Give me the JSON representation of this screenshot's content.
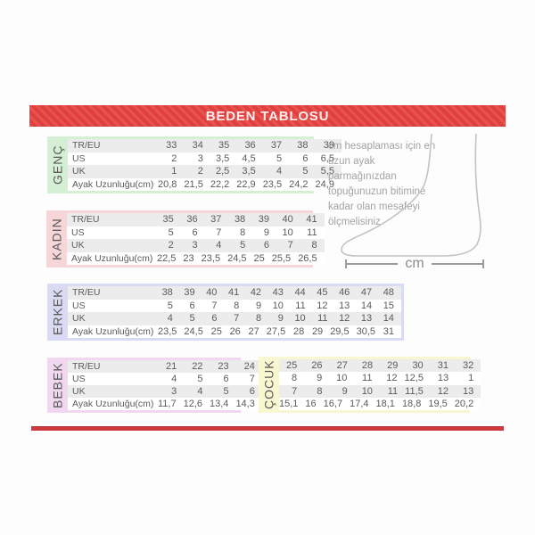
{
  "title": "BEDEN TABLOSU",
  "measure_label": "cm",
  "instructions": {
    "lines": [
      "cm hesaplaması için en",
      "uzun ayak parmağınızdan",
      "topuğunuzun bitimine",
      "kadar olan mesafeyi",
      "ölçmelisiniz."
    ]
  },
  "row_labels": [
    "TR/EU",
    "US",
    "UK",
    "Ayak Uzunluğu(cm)"
  ],
  "colors": {
    "header_red": "#e5403e",
    "bottom_bar_red": "#cf3a41",
    "genc_bg": "#d5efd4",
    "kadin_bg": "#f6d6d9",
    "erkek_bg": "#d9daf3",
    "bebek_bg": "#f1d7f0",
    "cocuk_bg": "#f8f7d2",
    "row_stripe": "#ececec",
    "table_text": "#5b5b5b",
    "note_text": "#a3a3a3"
  },
  "tables": [
    {
      "id": "genc",
      "label": "GENÇ",
      "color_key": "genc_bg",
      "show_row_labels": true,
      "rows": [
        [
          "33",
          "34",
          "35",
          "36",
          "37",
          "38",
          "39"
        ],
        [
          "2",
          "3",
          "3,5",
          "4,5",
          "5",
          "6",
          "6,5"
        ],
        [
          "1",
          "2",
          "2,5",
          "3,5",
          "4",
          "5",
          "5,5"
        ],
        [
          "20,8",
          "21,5",
          "22,2",
          "22,9",
          "23,5",
          "24,2",
          "24,9"
        ]
      ]
    },
    {
      "id": "kadin",
      "label": "KADIN",
      "color_key": "kadin_bg",
      "show_row_labels": true,
      "rows": [
        [
          "35",
          "36",
          "37",
          "38",
          "39",
          "40",
          "41"
        ],
        [
          "5",
          "6",
          "7",
          "8",
          "9",
          "10",
          "11"
        ],
        [
          "2",
          "3",
          "4",
          "5",
          "6",
          "7",
          "8"
        ],
        [
          "22,5",
          "23",
          "23,5",
          "24,5",
          "25",
          "25,5",
          "26,5"
        ]
      ]
    },
    {
      "id": "erkek",
      "label": "ERKEK",
      "color_key": "erkek_bg",
      "show_row_labels": true,
      "rows": [
        [
          "38",
          "39",
          "40",
          "41",
          "42",
          "43",
          "44",
          "45",
          "46",
          "47",
          "48"
        ],
        [
          "5",
          "6",
          "7",
          "8",
          "9",
          "10",
          "11",
          "12",
          "13",
          "14",
          "15"
        ],
        [
          "4",
          "5",
          "6",
          "7",
          "8",
          "9",
          "10",
          "11",
          "12",
          "13",
          "14"
        ],
        [
          "23,5",
          "24,5",
          "25",
          "26",
          "27",
          "27,5",
          "28",
          "29",
          "29,5",
          "30,5",
          "31"
        ]
      ]
    },
    {
      "id": "bebek",
      "label": "BEBEK",
      "color_key": "bebek_bg",
      "show_row_labels": true,
      "rows": [
        [
          "21",
          "22",
          "23",
          "24"
        ],
        [
          "4",
          "5",
          "6",
          "7"
        ],
        [
          "3",
          "4",
          "5",
          "6"
        ],
        [
          "11,7",
          "12,6",
          "13,4",
          "14,3"
        ]
      ]
    },
    {
      "id": "cocuk",
      "label": "ÇOCUK",
      "color_key": "cocuk_bg",
      "show_row_labels": false,
      "rows": [
        [
          "25",
          "26",
          "27",
          "28",
          "29",
          "30",
          "31",
          "32"
        ],
        [
          "8",
          "9",
          "10",
          "11",
          "12",
          "12,5",
          "13",
          "1"
        ],
        [
          "7",
          "8",
          "9",
          "10",
          "11",
          "11,5",
          "12",
          "13"
        ],
        [
          "15,1",
          "16",
          "16,7",
          "17,4",
          "18,1",
          "18,8",
          "19,5",
          "20,2"
        ]
      ]
    }
  ]
}
